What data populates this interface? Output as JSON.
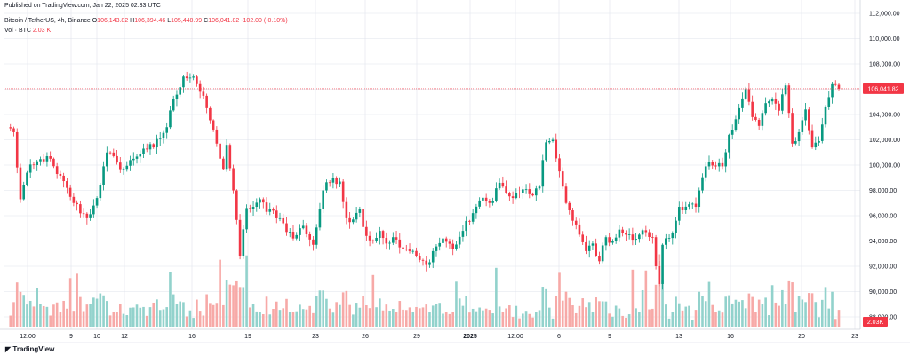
{
  "header": {
    "published": "Published on TradingView.com, Jan 22, 2025 02:33 UTC",
    "symbol": "Bitcoin / TetherUS, 4h, Binance",
    "o_label": "O",
    "o_value": "106,143.82",
    "h_label": "H",
    "h_value": "106,394.46",
    "l_label": "L",
    "l_value": "105,448.99",
    "c_label": "C",
    "c_value": "106,041.82",
    "change": "-102.00 (-0.10%)",
    "vol_label": "Vol · BTC",
    "vol_value": "2.03 K"
  },
  "footer": {
    "brand": "TradingView"
  },
  "colors": {
    "up": "#089981",
    "down": "#f23645",
    "vol_up": "#92d2cc",
    "vol_down": "#f7a9a7",
    "grid": "#e0e3eb"
  },
  "chart_data": {
    "type": "candlestick",
    "y_axis_ticks": [
      "112,000.00",
      "110,000.00",
      "108,000.00",
      "106,000.00",
      "104,000.00",
      "102,000.00",
      "100,000.00",
      "98,000.00",
      "96,000.00",
      "94,000.00",
      "92,000.00",
      "90,000.00",
      "88,000.00"
    ],
    "ylim": [
      87000,
      112000
    ],
    "x_axis_labels": [
      "12:00",
      "9",
      "10",
      "12",
      "16",
      "19",
      "23",
      "26",
      "29",
      "2025",
      "12:00",
      "6",
      "9",
      "13",
      "16",
      "20",
      "23"
    ],
    "last_price": "106,041.82",
    "last_price_value": 106041.82,
    "last_volume": "2.03K",
    "anchors": [
      [
        0,
        103000
      ],
      [
        2,
        102600
      ],
      [
        4,
        97300
      ],
      [
        6,
        99400
      ],
      [
        8,
        100000
      ],
      [
        12,
        100700
      ],
      [
        15,
        99300
      ],
      [
        18,
        98200
      ],
      [
        20,
        97000
      ],
      [
        24,
        95800
      ],
      [
        26,
        96800
      ],
      [
        28,
        98400
      ],
      [
        30,
        101000
      ],
      [
        33,
        100200
      ],
      [
        35,
        99700
      ],
      [
        38,
        100500
      ],
      [
        41,
        101300
      ],
      [
        44,
        101400
      ],
      [
        48,
        103000
      ],
      [
        50,
        105200
      ],
      [
        53,
        107000
      ],
      [
        56,
        107000
      ],
      [
        58,
        105800
      ],
      [
        60,
        104500
      ],
      [
        63,
        101700
      ],
      [
        65,
        99700
      ],
      [
        66,
        101600
      ],
      [
        68,
        98000
      ],
      [
        70,
        92800
      ],
      [
        72,
        96600
      ],
      [
        74,
        96700
      ],
      [
        76,
        97300
      ],
      [
        78,
        96300
      ],
      [
        80,
        96400
      ],
      [
        83,
        95400
      ],
      [
        86,
        94200
      ],
      [
        89,
        95200
      ],
      [
        92,
        93700
      ],
      [
        95,
        98000
      ],
      [
        98,
        99000
      ],
      [
        100,
        98700
      ],
      [
        102,
        95800
      ],
      [
        104,
        95700
      ],
      [
        106,
        96500
      ],
      [
        108,
        94400
      ],
      [
        110,
        94000
      ],
      [
        112,
        94800
      ],
      [
        114,
        93800
      ],
      [
        116,
        94300
      ],
      [
        118,
        93500
      ],
      [
        121,
        93200
      ],
      [
        124,
        92500
      ],
      [
        126,
        92100
      ],
      [
        128,
        93200
      ],
      [
        131,
        94200
      ],
      [
        134,
        93400
      ],
      [
        137,
        94800
      ],
      [
        140,
        96200
      ],
      [
        142,
        97200
      ],
      [
        145,
        97000
      ],
      [
        148,
        98600
      ],
      [
        150,
        97800
      ],
      [
        152,
        97400
      ],
      [
        154,
        97800
      ],
      [
        156,
        98100
      ],
      [
        158,
        97600
      ],
      [
        160,
        98300
      ],
      [
        162,
        101800
      ],
      [
        164,
        102000
      ],
      [
        166,
        99500
      ],
      [
        168,
        97000
      ],
      [
        170,
        95600
      ],
      [
        172,
        94500
      ],
      [
        174,
        93200
      ],
      [
        176,
        93800
      ],
      [
        178,
        92400
      ],
      [
        180,
        94300
      ],
      [
        182,
        94000
      ],
      [
        184,
        94900
      ],
      [
        186,
        94500
      ],
      [
        188,
        94100
      ],
      [
        190,
        94500
      ],
      [
        192,
        94700
      ],
      [
        194,
        94300
      ],
      [
        195,
        92000
      ],
      [
        196,
        90600
      ],
      [
        197,
        93700
      ],
      [
        200,
        94600
      ],
      [
        202,
        96700
      ],
      [
        205,
        96900
      ],
      [
        207,
        96700
      ],
      [
        210,
        99900
      ],
      [
        213,
        99900
      ],
      [
        215,
        99900
      ],
      [
        217,
        102400
      ],
      [
        220,
        104500
      ],
      [
        222,
        106000
      ],
      [
        224,
        103800
      ],
      [
        226,
        103100
      ],
      [
        228,
        104900
      ],
      [
        230,
        105200
      ],
      [
        232,
        104300
      ],
      [
        234,
        106300
      ],
      [
        236,
        101700
      ],
      [
        238,
        102600
      ],
      [
        240,
        104400
      ],
      [
        242,
        101400
      ],
      [
        244,
        101900
      ],
      [
        246,
        104600
      ],
      [
        248,
        106400
      ],
      [
        250,
        106040
      ]
    ]
  }
}
